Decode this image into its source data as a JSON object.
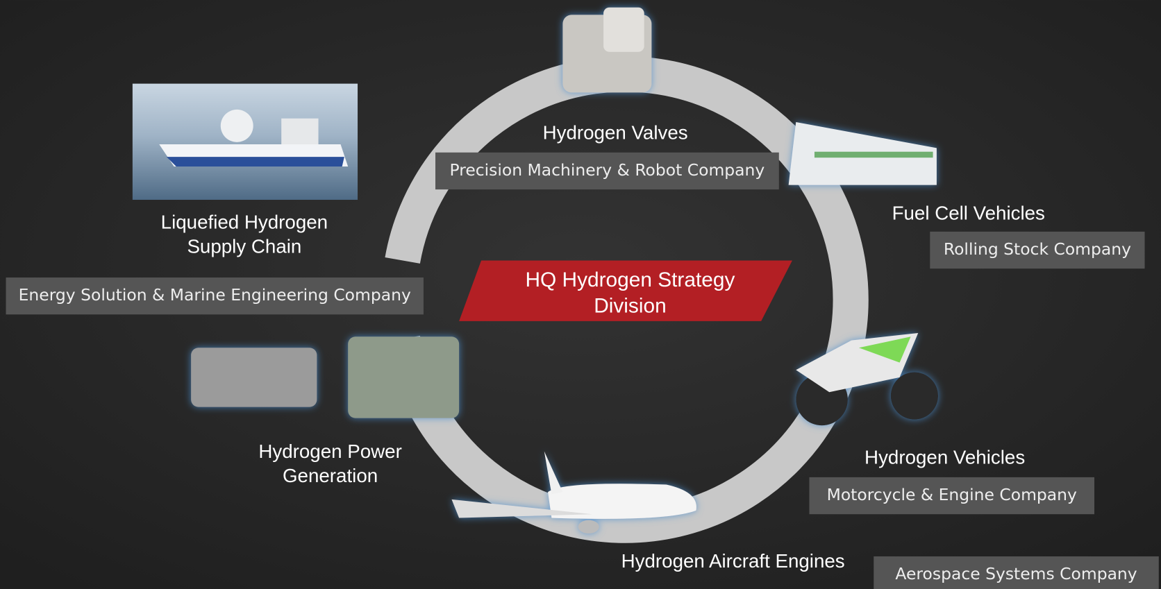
{
  "center": {
    "lines": [
      "HQ Hydrogen Strategy",
      "Division"
    ]
  },
  "nodes": [
    {
      "label": [
        "Hydrogen Valves"
      ],
      "company": "Precision Machinery & Robot Company"
    },
    {
      "label": [
        "Fuel Cell Vehicles"
      ],
      "company": "Rolling Stock Company"
    },
    {
      "label": [
        "Hydrogen Vehicles"
      ],
      "company": "Motorcycle & Engine Company"
    },
    {
      "label": [
        "Hydrogen Aircraft Engines"
      ],
      "company": "Aerospace Systems Company"
    },
    {
      "label": [
        "Hydrogen Power",
        "Generation"
      ]
    },
    {
      "label": [
        "Liquefied Hydrogen",
        "Supply Chain"
      ],
      "company": "Energy Solution & Marine Engineering Company"
    }
  ]
}
